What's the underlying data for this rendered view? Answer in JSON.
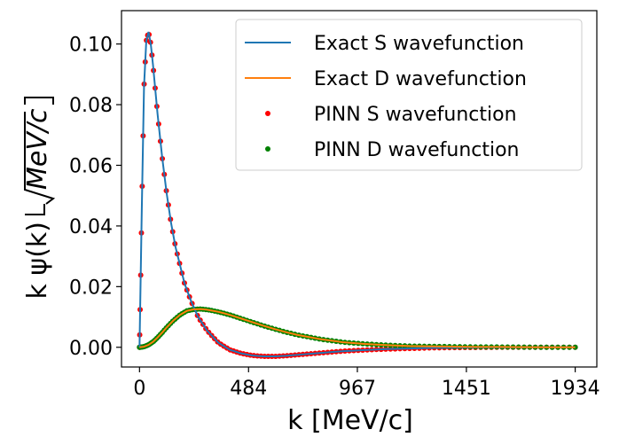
{
  "chart_data": {
    "type": "line",
    "xlabel": "k [MeV/c]",
    "ylabel_prefix": "k ψ(k)",
    "ylabel_unit": "MeV/c",
    "xlim": [
      -80,
      2030
    ],
    "ylim": [
      -0.0065,
      0.111
    ],
    "xticks": [
      0,
      484,
      967,
      1451,
      1934
    ],
    "yticks": [
      0.0,
      0.02,
      0.04,
      0.06,
      0.08,
      0.1
    ],
    "ytick_labels": [
      "0.00",
      "0.02",
      "0.04",
      "0.06",
      "0.08",
      "0.10"
    ],
    "legend_position": "upper right",
    "series": [
      {
        "name": "Exact S wavefunction",
        "kind": "line",
        "color": "#1f77b4",
        "x": [
          0,
          10,
          20,
          30,
          40,
          50,
          60,
          70,
          80,
          100,
          120,
          140,
          160,
          180,
          200,
          230,
          260,
          300,
          350,
          400,
          450,
          500,
          550,
          600,
          650,
          700,
          800,
          900,
          1000,
          1100,
          1200,
          1300,
          1400,
          1500,
          1600,
          1700,
          1800,
          1934
        ],
        "y": [
          0.0,
          0.045,
          0.086,
          0.101,
          0.104,
          0.1,
          0.093,
          0.085,
          0.077,
          0.063,
          0.051,
          0.041,
          0.033,
          0.027,
          0.021,
          0.015,
          0.01,
          0.0055,
          0.0015,
          -0.0008,
          -0.002,
          -0.0027,
          -0.003,
          -0.003,
          -0.0028,
          -0.0025,
          -0.0019,
          -0.0013,
          -0.0009,
          -0.0006,
          -0.0004,
          -0.0002,
          -0.0001,
          -5e-05,
          0.0,
          0.0,
          0.0,
          0.0
        ]
      },
      {
        "name": "Exact D wavefunction",
        "kind": "line",
        "color": "#ff7f0e",
        "x": [
          0,
          20,
          40,
          60,
          80,
          100,
          120,
          150,
          180,
          210,
          240,
          270,
          300,
          350,
          400,
          450,
          500,
          550,
          600,
          650,
          700,
          800,
          900,
          1000,
          1100,
          1200,
          1300,
          1400,
          1500,
          1600,
          1700,
          1800,
          1934
        ],
        "y": [
          0.0,
          0.0002,
          0.0008,
          0.0018,
          0.0032,
          0.0048,
          0.0065,
          0.0088,
          0.0107,
          0.012,
          0.0125,
          0.0126,
          0.0124,
          0.0117,
          0.0107,
          0.0095,
          0.0083,
          0.0071,
          0.006,
          0.005,
          0.0041,
          0.0027,
          0.0017,
          0.0011,
          0.0007,
          0.0004,
          0.0003,
          0.0002,
          0.0001,
          0.0001,
          5e-05,
          0.0,
          0.0
        ]
      },
      {
        "name": "PINN S wavefunction",
        "kind": "scatter",
        "color": "#ff0000",
        "of": 0
      },
      {
        "name": "PINN D wavefunction",
        "kind": "scatter",
        "color": "#008000",
        "of": 1
      }
    ]
  }
}
